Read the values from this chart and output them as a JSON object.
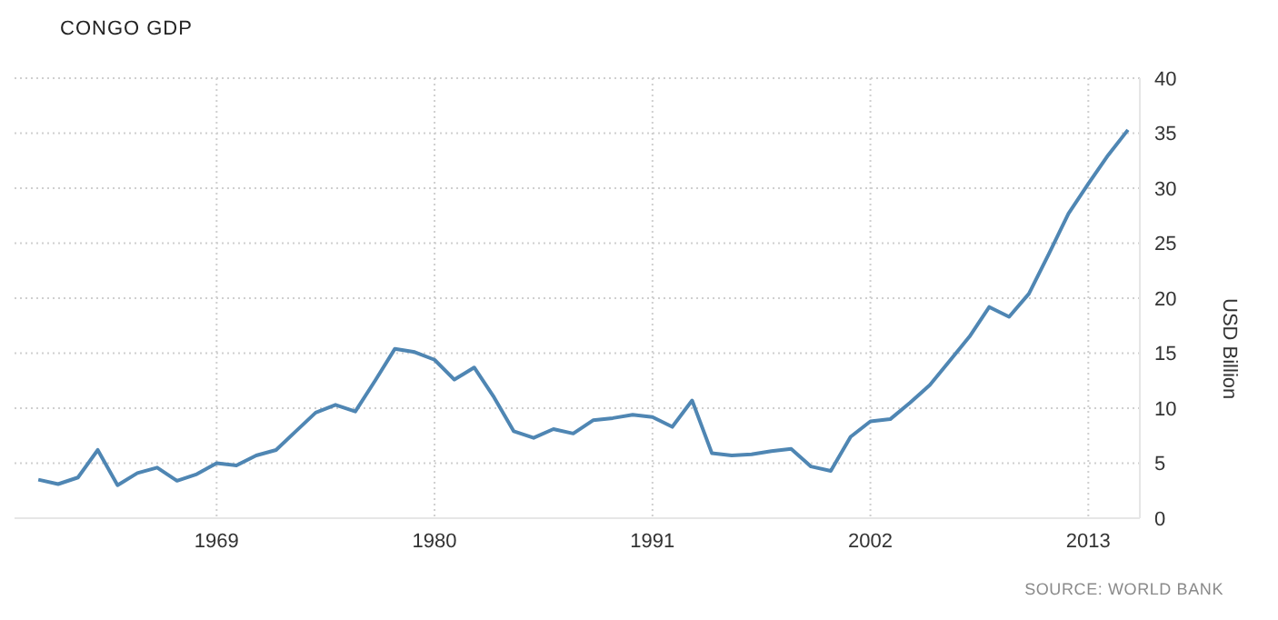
{
  "chart_data": {
    "type": "line",
    "title": "CONGO GDP",
    "y2label": "USD Billion",
    "x": [
      1960,
      1961,
      1962,
      1963,
      1964,
      1965,
      1966,
      1967,
      1968,
      1969,
      1970,
      1971,
      1972,
      1973,
      1974,
      1975,
      1976,
      1977,
      1978,
      1979,
      1980,
      1981,
      1982,
      1983,
      1984,
      1985,
      1986,
      1987,
      1988,
      1989,
      1990,
      1991,
      1992,
      1993,
      1994,
      1995,
      1996,
      1997,
      1998,
      1999,
      2000,
      2001,
      2002,
      2003,
      2004,
      2005,
      2006,
      2007,
      2008,
      2009,
      2010,
      2011,
      2012,
      2013,
      2014,
      2015
    ],
    "series": [
      {
        "color": "#4f86b3",
        "axis": "y2",
        "values": [
          3.5,
          3.1,
          3.7,
          6.2,
          3.0,
          4.1,
          4.6,
          3.4,
          4.0,
          5.0,
          4.8,
          5.7,
          6.2,
          7.9,
          9.6,
          10.3,
          9.7,
          12.5,
          15.4,
          15.1,
          14.4,
          12.6,
          13.7,
          11.0,
          7.9,
          7.3,
          8.1,
          7.7,
          8.9,
          9.1,
          9.4,
          9.2,
          8.3,
          10.7,
          5.9,
          5.7,
          5.8,
          6.1,
          6.3,
          4.7,
          4.3,
          7.4,
          8.8,
          9.0,
          10.5,
          12.1,
          14.3,
          16.5,
          19.2,
          18.3,
          20.4,
          24.0,
          27.7,
          30.4,
          33.0,
          35.3
        ]
      }
    ],
    "xlim": [
      1958.8,
      2015.6
    ],
    "xticks": [
      1969,
      1980,
      1991,
      2002,
      2013
    ],
    "y2lim": [
      0,
      40
    ],
    "y2ticks": [
      0,
      5,
      10,
      15,
      20,
      25,
      30,
      35,
      40
    ],
    "grid": true,
    "marker": "none",
    "line_style": "solid",
    "annotations": [
      "SOURCE: WORLD BANK"
    ]
  }
}
